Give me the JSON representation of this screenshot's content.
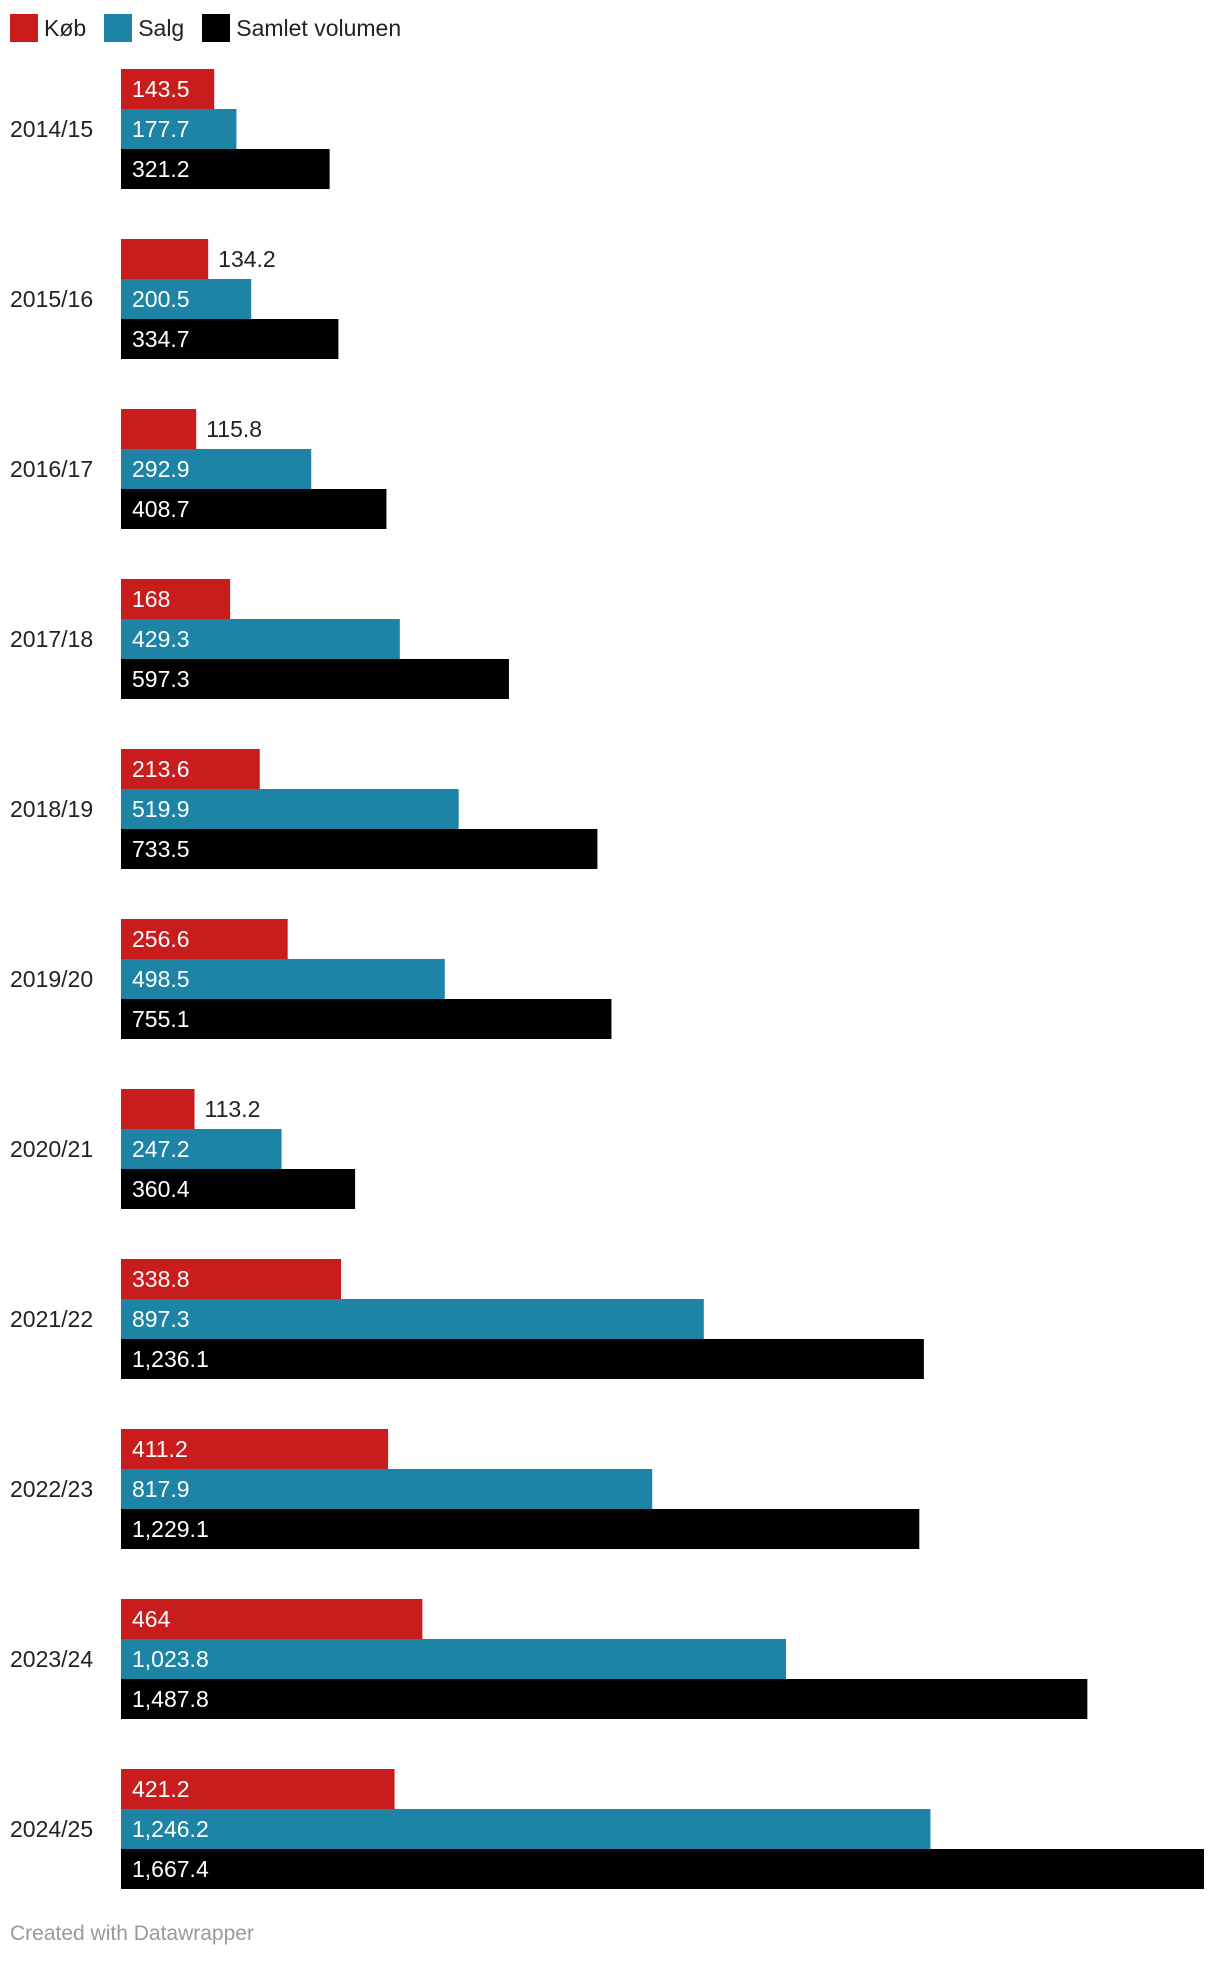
{
  "colors": {
    "kob": "#c91c1c",
    "salg": "#1d84a5",
    "samlet": "#000000"
  },
  "legend": [
    {
      "label": "Køb",
      "color": "#c91c1c"
    },
    {
      "label": "Salg",
      "color": "#1d84a5"
    },
    {
      "label": "Samlet volumen",
      "color": "#000000"
    }
  ],
  "footer": {
    "credit": "Created with Datawrapper"
  },
  "chart_data": {
    "type": "bar",
    "orientation": "horizontal",
    "title": "",
    "xlabel": "",
    "ylabel": "",
    "xlim": [
      0,
      1667.4
    ],
    "grid": false,
    "legend_position": "top-left",
    "categories": [
      "2014/15",
      "2015/16",
      "2016/17",
      "2017/18",
      "2018/19",
      "2019/20",
      "2020/21",
      "2021/22",
      "2022/23",
      "2023/24",
      "2024/25"
    ],
    "series": [
      {
        "name": "Køb",
        "color": "#c91c1c",
        "values": [
          143.5,
          134.2,
          115.8,
          168,
          213.6,
          256.6,
          113.2,
          338.8,
          411.2,
          464,
          421.2
        ],
        "labels": [
          "143.5",
          "134.2",
          "115.8",
          "168",
          "213.6",
          "256.6",
          "113.2",
          "338.8",
          "411.2",
          "464",
          "421.2"
        ]
      },
      {
        "name": "Salg",
        "color": "#1d84a5",
        "values": [
          177.7,
          200.5,
          292.9,
          429.3,
          519.9,
          498.5,
          247.2,
          897.3,
          817.9,
          1023.8,
          1246.2
        ],
        "labels": [
          "177.7",
          "200.5",
          "292.9",
          "429.3",
          "519.9",
          "498.5",
          "247.2",
          "897.3",
          "817.9",
          "1,023.8",
          "1,246.2"
        ]
      },
      {
        "name": "Samlet volumen",
        "color": "#000000",
        "values": [
          321.2,
          334.7,
          408.7,
          597.3,
          733.5,
          755.1,
          360.4,
          1236.1,
          1229.1,
          1487.8,
          1667.4
        ],
        "labels": [
          "321.2",
          "334.7",
          "408.7",
          "597.3",
          "733.5",
          "755.1",
          "360.4",
          "1,236.1",
          "1,229.1",
          "1,487.8",
          "1,667.4"
        ]
      }
    ]
  }
}
